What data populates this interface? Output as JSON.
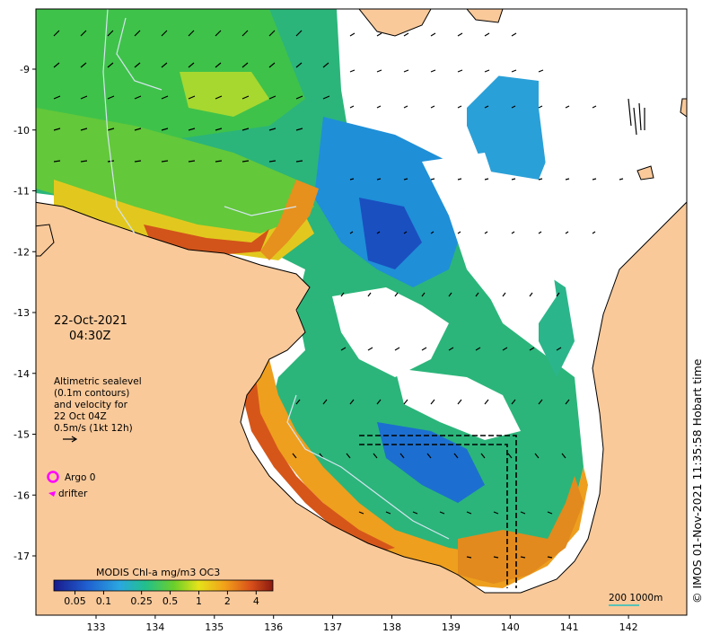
{
  "colors": {
    "land": "#f9c99a",
    "ocean_nodata": "#ffffff",
    "coast": "#000000",
    "contour": "#c8d8e8",
    "argo": "#ff00ff",
    "scale_bar": "#20c0c0"
  },
  "map": {
    "date": "22-Oct-2021",
    "time": "04:30Z",
    "altimetry_lines": [
      "Altimetric sealevel",
      "(0.1m contours)",
      "and velocity for",
      "22 Oct 04Z",
      "0.5m/s (1kt 12h)"
    ],
    "argo_label": "Argo 0",
    "drifter_label": "drifter",
    "colorbar_title": "MODIS Chl-a mg/m3 OC3",
    "colorbar_ticks": [
      "0.05",
      "0.1",
      "0.25",
      "0.5",
      "1",
      "2",
      "4"
    ],
    "scale_label": "200  1000m",
    "credit": "© IMOS 01-Nov-2021 11:35:58 Hobart time",
    "lon_ticks": [
      "133",
      "134",
      "135",
      "136",
      "137",
      "138",
      "139",
      "140",
      "141",
      "142"
    ],
    "lat_ticks": [
      "-9",
      "-10",
      "-11",
      "-12",
      "-13",
      "-14",
      "-15",
      "-16",
      "-17"
    ]
  }
}
